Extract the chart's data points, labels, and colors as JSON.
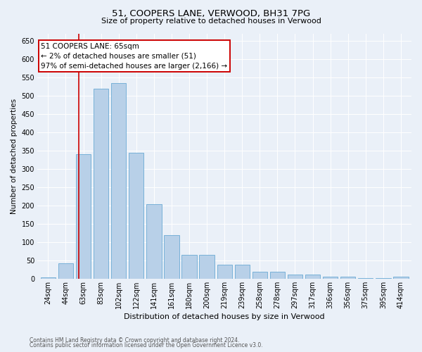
{
  "title1": "51, COOPERS LANE, VERWOOD, BH31 7PG",
  "title2": "Size of property relative to detached houses in Verwood",
  "xlabel": "Distribution of detached houses by size in Verwood",
  "ylabel": "Number of detached properties",
  "bar_labels": [
    "24sqm",
    "44sqm",
    "63sqm",
    "83sqm",
    "102sqm",
    "122sqm",
    "141sqm",
    "161sqm",
    "180sqm",
    "200sqm",
    "219sqm",
    "239sqm",
    "258sqm",
    "278sqm",
    "297sqm",
    "317sqm",
    "336sqm",
    "356sqm",
    "375sqm",
    "395sqm",
    "414sqm"
  ],
  "bar_values": [
    3,
    42,
    340,
    520,
    535,
    345,
    203,
    120,
    66,
    66,
    38,
    38,
    20,
    20,
    12,
    12,
    5,
    5,
    2,
    2,
    5
  ],
  "bar_color": "#b8d0e8",
  "bar_edge_color": "#6aaad4",
  "annotation_text": "51 COOPERS LANE: 65sqm\n← 2% of detached houses are smaller (51)\n97% of semi-detached houses are larger (2,166) →",
  "annotation_box_color": "#ffffff",
  "annotation_box_edge": "#cc0000",
  "vline_color": "#cc0000",
  "vline_bar_index": 1.75,
  "ylim": [
    0,
    670
  ],
  "yticks": [
    0,
    50,
    100,
    150,
    200,
    250,
    300,
    350,
    400,
    450,
    500,
    550,
    600,
    650
  ],
  "footnote1": "Contains HM Land Registry data © Crown copyright and database right 2024.",
  "footnote2": "Contains public sector information licensed under the Open Government Licence v3.0.",
  "bg_color": "#eaf0f8",
  "plot_bg_color": "#eaf0f8",
  "title1_fontsize": 9.5,
  "title2_fontsize": 8.0,
  "ylabel_fontsize": 7.5,
  "xlabel_fontsize": 8.0,
  "tick_labelsize": 7.0,
  "annot_fontsize": 7.5
}
